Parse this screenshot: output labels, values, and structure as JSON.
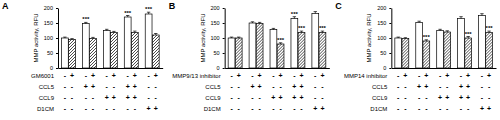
{
  "chart_data": [
    {
      "type": "bar",
      "title": "A",
      "y_label": "MMP activity, RFU",
      "categories": [
        null,
        null,
        null,
        null,
        null
      ],
      "series": [
        {
          "color": "#ffffff",
          "values": [
            100,
            148,
            125,
            170,
            180
          ],
          "errors": [
            3,
            4,
            4,
            5,
            6
          ],
          "annotations": [
            null,
            "***",
            null,
            "***",
            "***"
          ]
        },
        {
          "color": "#ffffff",
          "marker": "hatched",
          "values": [
            95,
            98,
            118,
            118,
            110
          ],
          "errors": [
            3,
            4,
            4,
            5,
            5
          ],
          "annotations": [
            null,
            null,
            null,
            null,
            null
          ]
        }
      ],
      "ylim": [
        0,
        200
      ],
      "yticks": [
        0,
        50,
        100,
        150,
        200
      ],
      "conditions": [
        {
          "label": "GM6001",
          "signs": [
            "-",
            "+",
            "-",
            "+",
            "-",
            "+",
            "-",
            "+",
            "-",
            "+"
          ]
        },
        {
          "label": "CCL5",
          "signs": [
            "-",
            "-",
            "+",
            "+",
            "-",
            "-",
            "+",
            "+",
            "-",
            "-"
          ]
        },
        {
          "label": "CCL9",
          "signs": [
            "-",
            "-",
            "-",
            "-",
            "+",
            "+",
            "+",
            "+",
            "-",
            "-"
          ]
        },
        {
          "label": "D1CM",
          "signs": [
            "-",
            "-",
            "-",
            "-",
            "-",
            "-",
            "-",
            "-",
            "+",
            "+"
          ]
        }
      ]
    },
    {
      "type": "bar",
      "title": "B",
      "y_label": "MMP activity, RFU",
      "categories": [
        null,
        null,
        null,
        null,
        null
      ],
      "series": [
        {
          "color": "#ffffff",
          "values": [
            100,
            150,
            128,
            165,
            182
          ],
          "errors": [
            3,
            4,
            4,
            6,
            6
          ],
          "annotations": [
            null,
            null,
            null,
            "***",
            null
          ]
        },
        {
          "color": "#ffffff",
          "marker": "hatched",
          "values": [
            100,
            148,
            80,
            118,
            118
          ],
          "errors": [
            3,
            4,
            4,
            5,
            5
          ],
          "annotations": [
            null,
            null,
            "***",
            "***",
            "***"
          ]
        }
      ],
      "ylim": [
        0,
        200
      ],
      "yticks": [
        0,
        50,
        100,
        150,
        200
      ],
      "conditions": [
        {
          "label": "MMP9/13 inhibitor",
          "signs": [
            "-",
            "+",
            "-",
            "+",
            "-",
            "+",
            "-",
            "+",
            "-",
            "+"
          ]
        },
        {
          "label": "CCL5",
          "signs": [
            "-",
            "-",
            "+",
            "+",
            "-",
            "-",
            "+",
            "+",
            "-",
            "-"
          ]
        },
        {
          "label": "CCL9",
          "signs": [
            "-",
            "-",
            "-",
            "-",
            "+",
            "+",
            "+",
            "+",
            "-",
            "-"
          ]
        },
        {
          "label": "D1CM",
          "signs": [
            "-",
            "-",
            "-",
            "-",
            "-",
            "-",
            "-",
            "-",
            "+",
            "+"
          ]
        }
      ]
    },
    {
      "type": "bar",
      "title": "C",
      "y_label": "MMP activity, RFU",
      "categories": [
        null,
        null,
        null,
        null,
        null
      ],
      "series": [
        {
          "color": "#ffffff",
          "values": [
            100,
            152,
            125,
            165,
            175
          ],
          "errors": [
            3,
            4,
            4,
            6,
            6
          ],
          "annotations": [
            null,
            null,
            null,
            null,
            null
          ]
        },
        {
          "color": "#ffffff",
          "marker": "hatched",
          "values": [
            98,
            90,
            120,
            100,
            118
          ],
          "errors": [
            3,
            4,
            4,
            5,
            5
          ],
          "annotations": [
            null,
            "***",
            null,
            "***",
            "***"
          ]
        }
      ],
      "ylim": [
        0,
        200
      ],
      "yticks": [
        0,
        50,
        100,
        150,
        200
      ],
      "conditions": [
        {
          "label": "MMP14 inhibitor",
          "signs": [
            "-",
            "+",
            "-",
            "+",
            "-",
            "+",
            "-",
            "+",
            "-",
            "+"
          ]
        },
        {
          "label": "CCL5",
          "signs": [
            "-",
            "-",
            "+",
            "+",
            "-",
            "-",
            "+",
            "+",
            "-",
            "-"
          ]
        },
        {
          "label": "CCL9",
          "signs": [
            "-",
            "-",
            "-",
            "-",
            "+",
            "+",
            "+",
            "+",
            "-",
            "-"
          ]
        },
        {
          "label": "D1CM",
          "signs": [
            "-",
            "-",
            "-",
            "-",
            "-",
            "-",
            "-",
            "-",
            "+",
            "+"
          ]
        }
      ]
    }
  ]
}
